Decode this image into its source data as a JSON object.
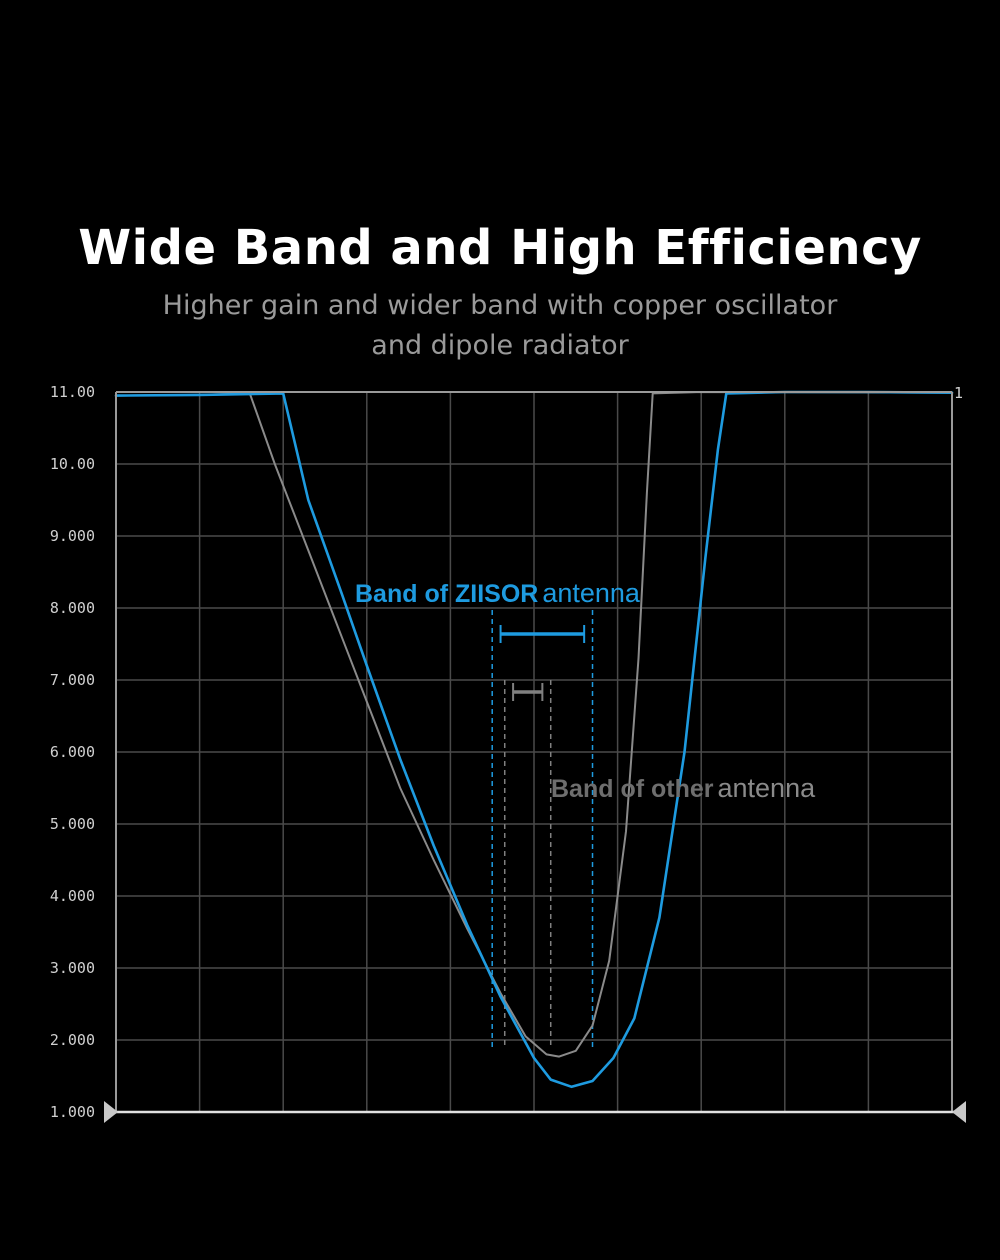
{
  "header": {
    "title": "Wide Band and High Efficiency",
    "subtitle": "Higher gain and wider band with copper oscillator and dipole radiator"
  },
  "colors": {
    "background": "#000000",
    "grid": "#4a4a4a",
    "frame": "#9a9a9a",
    "ziisor": "#1e9be0",
    "other": "#8a8a8a",
    "subtitle": "#9a9a9a"
  },
  "chart_data": {
    "type": "line",
    "title": "",
    "xlabel": "",
    "ylabel": "",
    "xlim": [
      0,
      10
    ],
    "ylim": [
      1,
      11
    ],
    "grid": true,
    "x_divisions": 10,
    "y_ticks": [
      "11.00",
      "10.00",
      "9.000",
      "8.000",
      "7.000",
      "6.000",
      "5.000",
      "4.000",
      "3.000",
      "2.000",
      "1.000"
    ],
    "marker_label": "1",
    "series": [
      {
        "color": "#1e9be0",
        "points": [
          [
            0,
            10.95
          ],
          [
            1.0,
            10.96
          ],
          [
            2.0,
            10.98
          ],
          [
            2.3,
            9.5
          ],
          [
            2.7,
            8.2
          ],
          [
            3.0,
            7.2
          ],
          [
            3.4,
            5.9
          ],
          [
            3.8,
            4.7
          ],
          [
            4.2,
            3.6
          ],
          [
            4.6,
            2.6
          ],
          [
            5.0,
            1.75
          ],
          [
            5.2,
            1.45
          ],
          [
            5.45,
            1.35
          ],
          [
            5.7,
            1.43
          ],
          [
            5.95,
            1.75
          ],
          [
            6.2,
            2.3
          ],
          [
            6.5,
            3.7
          ],
          [
            6.8,
            6.0
          ],
          [
            7.05,
            8.7
          ],
          [
            7.2,
            10.2
          ],
          [
            7.3,
            10.98
          ],
          [
            8.0,
            11.0
          ],
          [
            9.0,
            11.0
          ],
          [
            10,
            10.99
          ]
        ]
      },
      {
        "color": "#8a8a8a",
        "points": [
          [
            0,
            10.95
          ],
          [
            1.0,
            10.96
          ],
          [
            1.6,
            10.98
          ],
          [
            1.9,
            10.0
          ],
          [
            2.3,
            8.8
          ],
          [
            2.7,
            7.6
          ],
          [
            3.0,
            6.7
          ],
          [
            3.4,
            5.5
          ],
          [
            3.8,
            4.5
          ],
          [
            4.2,
            3.55
          ],
          [
            4.6,
            2.65
          ],
          [
            4.9,
            2.05
          ],
          [
            5.15,
            1.8
          ],
          [
            5.3,
            1.77
          ],
          [
            5.5,
            1.85
          ],
          [
            5.7,
            2.2
          ],
          [
            5.9,
            3.1
          ],
          [
            6.1,
            4.9
          ],
          [
            6.25,
            7.3
          ],
          [
            6.35,
            9.6
          ],
          [
            6.42,
            10.98
          ],
          [
            7.0,
            11.0
          ],
          [
            10,
            10.99
          ]
        ]
      }
    ],
    "annotations": {
      "ziisor": {
        "label_bold": "Band of ZIISOR",
        "label_rest": "antenna",
        "band": [
          4.5,
          5.7
        ],
        "bar": [
          4.6,
          5.6
        ]
      },
      "other": {
        "label_bold": "Band of other",
        "label_rest": "antenna",
        "band": [
          4.65,
          5.2
        ],
        "bar": [
          4.75,
          5.1
        ]
      }
    }
  }
}
